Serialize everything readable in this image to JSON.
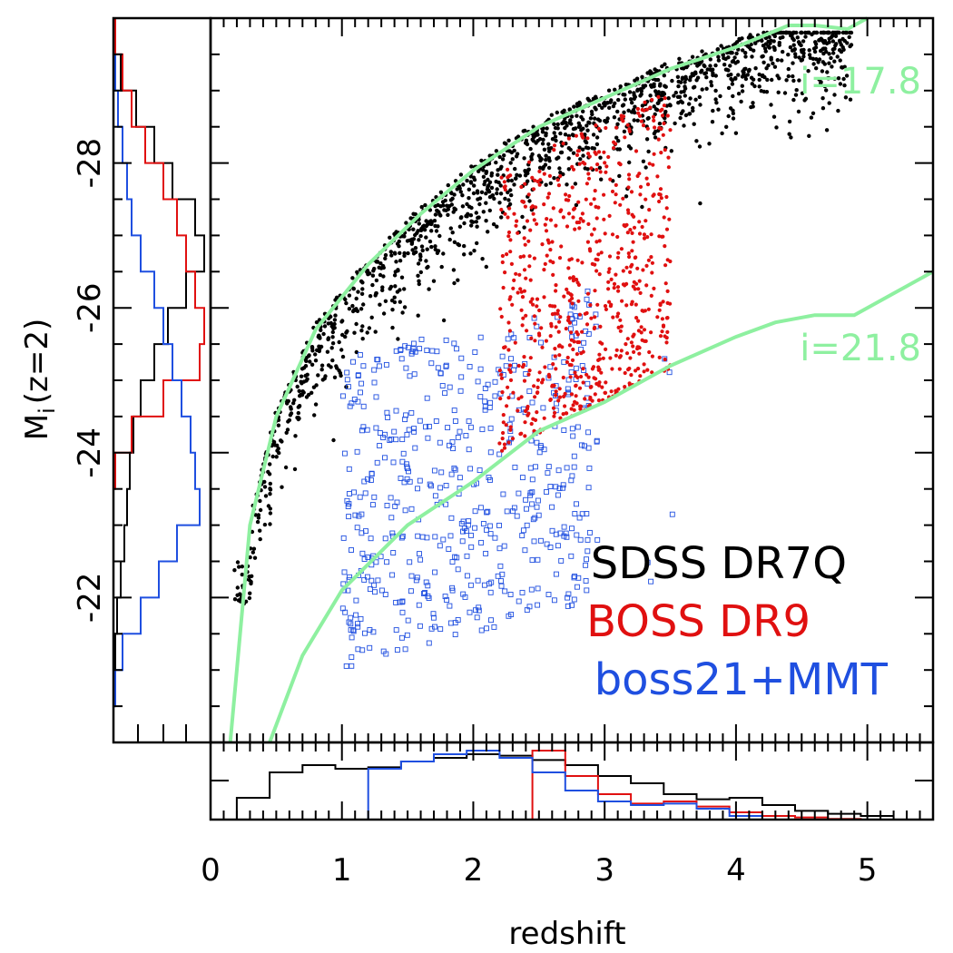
{
  "chart_data": {
    "type": "scatter",
    "x_axis": {
      "label": "redshift",
      "range": [
        0,
        5.5
      ],
      "tick_labels": [
        "0",
        "1",
        "2",
        "3",
        "4",
        "5"
      ],
      "ticks": [
        0,
        1,
        2,
        3,
        4,
        5
      ]
    },
    "y_axis": {
      "label_main": "M",
      "label_sub": "i",
      "label_rest": "(z=2)",
      "range": [
        -20.0,
        -30.0
      ],
      "tick_labels": [
        "-28",
        "-26",
        "-24",
        "-22"
      ],
      "ticks": [
        -28,
        -26,
        -24,
        -22
      ],
      "inverted": true
    },
    "legend": {
      "placement": "lower-right",
      "entries": [
        {
          "label": "SDSS DR7Q",
          "color": "#000000"
        },
        {
          "label": "BOSS DR9",
          "color": "#e01010"
        },
        {
          "label": "boss21+MMT",
          "color": "#1f4fe0"
        }
      ]
    },
    "series": [
      {
        "name": "SDSS DR7Q",
        "marker": "dot",
        "color": "#000000",
        "count": 1500,
        "distribution": "points along the i=17.8 flux limit from z≈0.1 to z≈5, M from about -22 to -29"
      },
      {
        "name": "BOSS DR9",
        "marker": "dot",
        "color": "#e01010",
        "count": 700,
        "distribution": "z≈2.2-3.5, M from about -24 to -28.5"
      },
      {
        "name": "boss21+MMT",
        "marker": "open-square",
        "color": "#1f4fe0",
        "count": 550,
        "distribution": "z≈1-3.8, M from about -21 to -26"
      }
    ],
    "curves": [
      {
        "label": "i=17.8",
        "color": "#8ef0a0",
        "points": [
          [
            0.15,
            -20.0
          ],
          [
            0.3,
            -23.0
          ],
          [
            0.5,
            -24.5
          ],
          [
            0.8,
            -25.7
          ],
          [
            1.2,
            -26.6
          ],
          [
            1.6,
            -27.3
          ],
          [
            2.0,
            -27.9
          ],
          [
            2.5,
            -28.5
          ],
          [
            3.0,
            -28.9
          ],
          [
            3.5,
            -29.3
          ],
          [
            4.0,
            -29.6
          ],
          [
            4.4,
            -29.9
          ],
          [
            4.6,
            -29.9
          ],
          [
            4.85,
            -29.85
          ],
          [
            5.0,
            -30.0
          ]
        ]
      },
      {
        "label": "i=21.8",
        "color": "#8ef0a0",
        "points": [
          [
            0.45,
            -20.0
          ],
          [
            0.7,
            -21.2
          ],
          [
            1.0,
            -22.1
          ],
          [
            1.5,
            -23.0
          ],
          [
            2.0,
            -23.6
          ],
          [
            2.5,
            -24.3
          ],
          [
            3.0,
            -24.7
          ],
          [
            3.5,
            -25.2
          ],
          [
            4.0,
            -25.6
          ],
          [
            4.3,
            -25.8
          ],
          [
            4.6,
            -25.9
          ],
          [
            4.9,
            -25.9
          ],
          [
            5.2,
            -26.2
          ],
          [
            5.5,
            -26.5
          ]
        ]
      }
    ],
    "side_histogram_M": {
      "bins": [
        -30,
        -29.5,
        -29,
        -28.5,
        -28,
        -27.5,
        -27,
        -26.5,
        -26,
        -25.5,
        -25,
        -24.5,
        -24,
        -23.5,
        -23,
        -22.5,
        -22,
        -21.5,
        -21,
        -20.5
      ],
      "series": [
        {
          "name": "SDSS DR7Q",
          "color": "#000000",
          "values": [
            0.02,
            0.08,
            0.25,
            0.45,
            0.65,
            0.9,
            1.0,
            0.8,
            0.6,
            0.45,
            0.3,
            0.22,
            0.18,
            0.15,
            0.12,
            0.08,
            0.04,
            0.02,
            0.01,
            0.0
          ]
        },
        {
          "name": "BOSS DR9",
          "color": "#e01010",
          "values": [
            0.02,
            0.1,
            0.2,
            0.35,
            0.55,
            0.7,
            0.8,
            0.9,
            1.0,
            0.95,
            0.55,
            0.2,
            0.02,
            0.0,
            0.0,
            0.0,
            0.0,
            0.0,
            0.0,
            0.0
          ]
        },
        {
          "name": "boss21+MMT",
          "color": "#1f4fe0",
          "values": [
            0.0,
            0.02,
            0.05,
            0.1,
            0.15,
            0.2,
            0.3,
            0.45,
            0.55,
            0.65,
            0.75,
            0.85,
            0.9,
            0.95,
            0.7,
            0.5,
            0.3,
            0.1,
            0.02,
            0.0
          ]
        }
      ]
    },
    "bottom_histogram_z": {
      "bin_edges_start": 0.2,
      "bin_width": 0.25,
      "series": [
        {
          "name": "SDSS DR7Q",
          "color": "#000000",
          "values": [
            0.3,
            0.65,
            0.75,
            0.7,
            0.72,
            0.8,
            0.85,
            0.9,
            0.88,
            0.82,
            0.75,
            0.6,
            0.5,
            0.35,
            0.28,
            0.3,
            0.2,
            0.12,
            0.08,
            0.05
          ]
        },
        {
          "name": "BOSS DR9",
          "color": "#e01010",
          "values": [
            0,
            0,
            0,
            0,
            0,
            0,
            0,
            0,
            0,
            0.95,
            0.6,
            0.35,
            0.22,
            0.25,
            0.18,
            0.1,
            0.05,
            0.03,
            0.01,
            0
          ]
        },
        {
          "name": "boss21+MMT",
          "color": "#1f4fe0",
          "values": [
            0,
            0,
            0,
            0,
            0.7,
            0.8,
            0.9,
            0.95,
            0.85,
            0.65,
            0.4,
            0.25,
            0.2,
            0.22,
            0.15,
            0.05,
            0.0,
            0,
            0,
            0
          ]
        }
      ]
    }
  }
}
